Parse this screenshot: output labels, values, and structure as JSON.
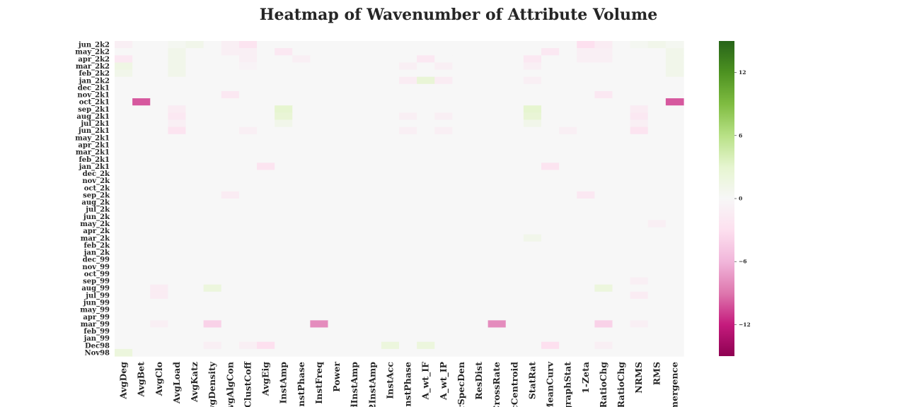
{
  "chart_data": {
    "type": "heatmap",
    "title": "Heatmap of Wavenumber of Attribute Volume",
    "rows": [
      "jun_2k2",
      "may_2k2",
      "apr_2k2",
      "mar_2k2",
      "feb_2k2",
      "jan_2k2",
      "dec_2k1",
      "nov_2k1",
      "oct_2k1",
      "sep_2k1",
      "aug_2k1",
      "jul_2k1",
      "jun_2k1",
      "may_2k1",
      "apr_2k1",
      "mar_2k1",
      "feb_2k1",
      "jan_2k1",
      "dec_2k",
      "nov_2k",
      "oct_2k",
      "sep_2k",
      "aug_2k",
      "jul_2k",
      "jun_2k",
      "may_2k",
      "apr_2k",
      "mar_2k",
      "feb_2k",
      "jan_2k",
      "dec_99",
      "nov_99",
      "oct_99",
      "sep_99",
      "aug_99",
      "jul_99",
      "jun_99",
      "may_99",
      "apr_99",
      "mar_99",
      "feb_99",
      "jan_99",
      "Dec98",
      "Nov98"
    ],
    "ytick_labels": [
      "jun_2k2",
      "may_2k2",
      "apr_2k2",
      "mar_2k2",
      "feb_2k2",
      "jan_2k2",
      "dec_2k1",
      "nov_2k1",
      "oct_2k1",
      "sep_2k1",
      "aug_2k1",
      "jul_2k1",
      "jun_2k1",
      "may_2k1",
      "apr_2k1",
      "mar_2k1",
      "feb_2k1",
      "jan_2k1",
      "dec_2k",
      "nov_2k",
      "oct_2k",
      "sep_2k",
      "aug_2k",
      "jul_2k",
      "jun_2k",
      "may_2k",
      "apr_2k",
      "mar_2k",
      "feb_2k",
      "jan_2k",
      "dec_99",
      "nov_99",
      "oct_99",
      "sep_99",
      "aug_99",
      "jul_99",
      "jun_99",
      "may_99",
      "apr_99",
      "mar_99",
      "feb_99",
      "jan_99",
      "Dec98",
      "Nov98"
    ],
    "columns": [
      "AvgDeg",
      "AvgBet",
      "AvgClo",
      "AvgLoad",
      "AvgKatz",
      "AvgDensity",
      "AvgAlgCon",
      "AvgClustCoff",
      "AvgEig",
      "InstAmp",
      "InstPhase",
      "InstFreq",
      "Power",
      "dInstAmp",
      "2InstAmp",
      "InstAcc",
      "InstPhase",
      "A_wt_IF",
      "A_wt_IP",
      "rSpecDen",
      "ResDist",
      "CrossRate",
      "cCentroid",
      "StatRat",
      "MeanCurv",
      "graphStat",
      "1-Zeta",
      "RatioChg",
      "RatioChg",
      "NRMS",
      "RMS",
      "mergence"
    ],
    "xtick_labels": [
      "AvgDeg",
      "AvgBet",
      "AvgClo",
      "AvgLoad",
      "AvgKatz",
      "AvgDensity",
      "AvgAlgCon",
      "AvgClustCoff",
      "AvgEig",
      "InstAmp",
      "InstPhase",
      "InstFreq",
      "Power",
      "dInstAmp",
      "2InstAmp",
      "InstAcc",
      "InstPhase",
      "A_wt_IF",
      "A_wt_IP",
      "rSpecDen",
      "ResDist",
      "CrossRate",
      "cCentroid",
      "StatRat",
      "MeanCurv",
      "graphStat",
      "1-Zeta",
      "RatioChg",
      "RatioChg",
      "NRMS",
      "RMS",
      "mergence"
    ],
    "values": [
      [
        -1,
        0,
        0,
        0.5,
        1,
        0,
        -1,
        -2.5,
        0,
        0,
        0,
        0,
        0,
        0,
        0,
        0,
        0,
        0,
        0,
        0,
        0,
        0,
        0,
        0,
        0,
        0,
        -3,
        -1.5,
        0,
        0.5,
        1,
        0.5
      ],
      [
        0,
        0,
        0,
        1,
        0,
        0,
        -1,
        -1,
        0,
        -2,
        0,
        0,
        0,
        0,
        0,
        0,
        0,
        0,
        0,
        0,
        0,
        0,
        0,
        0,
        -2,
        0,
        -1,
        -1,
        0,
        0,
        0,
        1
      ],
      [
        -2,
        0,
        0,
        1,
        0,
        0,
        0,
        -1,
        0,
        0,
        -1,
        0,
        0,
        0,
        0,
        0,
        0,
        -2,
        0,
        0,
        0,
        0,
        0,
        -2,
        0,
        0,
        -1,
        -1,
        0,
        0,
        0,
        1
      ],
      [
        1.5,
        0,
        0,
        1,
        0,
        0,
        0,
        -0.5,
        0,
        0,
        0,
        0,
        0,
        0,
        0,
        0,
        -1,
        0,
        -1,
        0,
        0,
        0,
        0,
        -1,
        0,
        0,
        0,
        0,
        0,
        0,
        0,
        1
      ],
      [
        1,
        0,
        0,
        1,
        0,
        0,
        0,
        0,
        0,
        0,
        0,
        0,
        0,
        0,
        0,
        0,
        0,
        0,
        0,
        0,
        0,
        0,
        0,
        0,
        0,
        0,
        0,
        0,
        0,
        0,
        0,
        1
      ],
      [
        0,
        0,
        0,
        0,
        0,
        0,
        0,
        0,
        0,
        0,
        0,
        0,
        0,
        0,
        0,
        0,
        -1.5,
        2.5,
        -1.5,
        0,
        0,
        0,
        0,
        -1,
        0,
        0,
        0,
        0,
        0,
        0,
        0,
        0
      ],
      [
        0,
        0,
        0,
        0,
        0,
        0,
        0,
        0,
        0,
        0,
        0,
        0,
        0,
        0,
        0,
        0,
        0,
        0,
        0,
        0,
        0,
        0,
        0,
        0,
        0,
        0,
        0,
        0,
        0,
        0,
        0,
        0
      ],
      [
        0,
        0,
        0,
        0,
        0,
        0,
        -2,
        0,
        0,
        0,
        0,
        0,
        0,
        0,
        0,
        0,
        0,
        0,
        0,
        0,
        0,
        0,
        0,
        0,
        0,
        0,
        0,
        -2,
        0,
        0,
        0,
        0
      ],
      [
        0,
        -10,
        0,
        0,
        0,
        0,
        0,
        0,
        0,
        0,
        0,
        0,
        0,
        0,
        0,
        0,
        0,
        0,
        0,
        0,
        0,
        0,
        0,
        0,
        0,
        0,
        0,
        0,
        0,
        0,
        0,
        -10
      ],
      [
        0,
        0,
        0,
        -1.5,
        0,
        0,
        0,
        0,
        0,
        3,
        0,
        0,
        0,
        0,
        0,
        0,
        0,
        0,
        0,
        0,
        0,
        0,
        0,
        3,
        0,
        0,
        0,
        0,
        0,
        -1.5,
        0,
        0
      ],
      [
        0,
        0,
        0,
        -2,
        0,
        0,
        0,
        0,
        0,
        2.5,
        0,
        0,
        0,
        0,
        0,
        0,
        -1,
        0,
        -1,
        0,
        0,
        0,
        0,
        2.5,
        0,
        0,
        0,
        0,
        0,
        -2,
        0,
        0
      ],
      [
        0,
        0,
        0,
        -1,
        0,
        0,
        0,
        0,
        0,
        1,
        0,
        0,
        0,
        0,
        0,
        0,
        0,
        0,
        0,
        0,
        0,
        0,
        0,
        1,
        0,
        0,
        0,
        0,
        0,
        -1,
        0,
        0
      ],
      [
        0,
        0,
        0,
        -2.5,
        0,
        0,
        0,
        -1,
        0,
        0,
        0,
        0,
        0,
        0,
        0,
        0,
        -1,
        0,
        -1,
        0,
        0,
        0,
        0,
        0,
        0,
        -1,
        0,
        0,
        0,
        -2.5,
        0,
        0
      ],
      [
        0,
        0,
        0,
        0,
        0,
        0,
        0,
        0,
        0,
        0,
        0,
        0,
        0,
        0,
        0,
        0,
        0,
        0,
        0,
        0,
        0,
        0,
        0,
        0,
        0,
        0,
        0,
        0,
        0,
        0,
        0,
        0
      ],
      [
        0,
        0,
        0,
        0,
        0,
        0,
        0,
        0,
        0,
        0,
        0,
        0,
        0,
        0,
        0,
        0,
        0,
        0,
        0,
        0,
        0,
        0,
        0,
        0,
        0,
        0,
        0,
        0,
        0,
        0,
        0,
        0
      ],
      [
        0,
        0,
        0,
        0,
        0,
        0,
        0,
        0,
        0,
        0,
        0,
        0,
        0,
        0,
        0,
        0,
        0,
        0,
        0,
        0,
        0,
        0,
        0,
        0,
        0,
        0,
        0,
        0,
        0,
        0,
        0,
        0
      ],
      [
        0,
        0,
        0,
        0,
        0,
        0,
        0,
        0,
        0,
        0,
        0,
        0,
        0,
        0,
        0,
        0,
        0,
        0,
        0,
        0,
        0,
        0,
        0,
        0,
        0,
        0,
        0,
        0,
        0,
        0,
        0,
        0
      ],
      [
        0,
        0,
        0,
        0,
        0,
        0,
        0,
        0,
        -2.5,
        0,
        0,
        0,
        0,
        0,
        0,
        0,
        0,
        0,
        0,
        0,
        0,
        0,
        0,
        0,
        -2.5,
        0,
        0,
        0,
        0,
        0,
        0,
        0
      ],
      [
        0,
        0,
        0,
        0,
        0,
        0,
        0,
        0,
        0,
        0,
        0,
        0,
        0,
        0,
        0,
        0,
        0,
        0,
        0,
        0,
        0,
        0,
        0,
        0,
        0,
        0,
        0,
        0,
        0,
        0,
        0,
        0
      ],
      [
        0,
        0,
        0,
        0,
        0,
        0,
        0,
        0,
        0,
        0,
        0,
        0,
        0,
        0,
        0,
        0,
        0,
        0,
        0,
        0,
        0,
        0,
        0,
        0,
        0,
        0,
        0,
        0,
        0,
        0,
        0,
        0
      ],
      [
        0,
        0,
        0,
        0,
        0,
        0,
        0,
        0,
        0,
        0,
        0,
        0,
        0,
        0,
        0,
        0,
        0,
        0,
        0,
        0,
        0,
        0,
        0,
        0,
        0,
        0,
        0,
        0,
        0,
        0,
        0,
        0
      ],
      [
        0,
        0,
        0,
        0,
        0,
        0,
        -1.5,
        0,
        0,
        0,
        0,
        0,
        0,
        0,
        0,
        0,
        0,
        0,
        0,
        0,
        0,
        0,
        0,
        0,
        0,
        0,
        -2,
        0,
        0,
        0,
        0,
        0
      ],
      [
        0,
        0,
        0,
        0,
        0,
        0,
        0,
        0,
        0,
        0,
        0,
        0,
        0,
        0,
        0,
        0,
        0,
        0,
        0,
        0,
        0,
        0,
        0,
        0,
        0,
        0,
        0,
        0,
        0,
        0,
        0,
        0
      ],
      [
        0,
        0,
        0,
        0,
        0,
        0,
        0,
        0,
        0,
        0,
        0,
        0,
        0,
        0,
        0,
        0,
        0,
        0,
        0,
        0,
        0,
        0,
        0,
        0,
        0,
        0,
        0,
        0,
        0,
        0,
        0,
        0
      ],
      [
        0,
        0,
        0,
        0,
        0,
        0,
        0,
        0,
        0,
        0,
        0,
        0,
        0,
        0,
        0,
        0,
        0,
        0,
        0,
        0,
        0,
        0,
        0,
        0,
        0,
        0,
        0,
        0,
        0,
        0,
        0,
        0
      ],
      [
        0,
        0,
        0,
        0,
        0,
        0,
        0,
        0,
        0,
        0,
        0,
        0,
        0,
        0,
        0,
        0,
        0,
        0,
        0,
        0,
        0,
        0,
        0,
        0,
        0,
        0,
        0,
        0,
        0,
        0,
        -1,
        0
      ],
      [
        0,
        0,
        0,
        0,
        0,
        0,
        0,
        0,
        0,
        0,
        0,
        0,
        0,
        0,
        0,
        0,
        0,
        0,
        0,
        0,
        0,
        0,
        0,
        0,
        0,
        0,
        0,
        0,
        0,
        0,
        0,
        0
      ],
      [
        0,
        0,
        0,
        0,
        0,
        0,
        0,
        0,
        0,
        0,
        0,
        0,
        0,
        0,
        0,
        0,
        0,
        0,
        0,
        0,
        0,
        0,
        0,
        1,
        0,
        0,
        0,
        0,
        0,
        0,
        0,
        0
      ],
      [
        0,
        0,
        0,
        0,
        0,
        0,
        0,
        0,
        0,
        0,
        0,
        0,
        0,
        0,
        0,
        0,
        0,
        0,
        0,
        0,
        0,
        0,
        0,
        0,
        0,
        0,
        0,
        0,
        0,
        0,
        0,
        0
      ],
      [
        0,
        0,
        0,
        0,
        0,
        0,
        0,
        0,
        0,
        0,
        0,
        0,
        0,
        0,
        0,
        0,
        0,
        0,
        0,
        0,
        0,
        0,
        0,
        0,
        0,
        0,
        0,
        0,
        0,
        0,
        0,
        0
      ],
      [
        0,
        0,
        0,
        0,
        0,
        0,
        0,
        0,
        0,
        0,
        0,
        0,
        0,
        0,
        0,
        0,
        0,
        0,
        0,
        0,
        0,
        0,
        0,
        0,
        0,
        0,
        0,
        0,
        0,
        0,
        0,
        0
      ],
      [
        0,
        0,
        0,
        0,
        0,
        0,
        0,
        0,
        0,
        0,
        0,
        0,
        0,
        0,
        0,
        0,
        0,
        0,
        0,
        0,
        0,
        0,
        0,
        0,
        0,
        0,
        0,
        0,
        0,
        0,
        0,
        0
      ],
      [
        0,
        0,
        0,
        0,
        0,
        0,
        0,
        0,
        0,
        0,
        0,
        0,
        0,
        0,
        0,
        0,
        0,
        0,
        0,
        0,
        0,
        0,
        0,
        0,
        0,
        0,
        0,
        0,
        0,
        0,
        0,
        0
      ],
      [
        0,
        0,
        0,
        0,
        0,
        0,
        0,
        0,
        0,
        0,
        0,
        0,
        0,
        0,
        0,
        0,
        0,
        0,
        0,
        0,
        0,
        0,
        0,
        0,
        0,
        0,
        0,
        0,
        0,
        -1,
        0,
        0
      ],
      [
        0,
        0,
        -1.5,
        0,
        0,
        2,
        0,
        0,
        0,
        0,
        0,
        0,
        0,
        0,
        0,
        0,
        0,
        0,
        0,
        0,
        0,
        0,
        0,
        0,
        0,
        0,
        0,
        2,
        0,
        0,
        0,
        0
      ],
      [
        0,
        0,
        -1.5,
        0,
        0,
        0,
        0,
        0,
        0,
        0,
        0,
        0,
        0,
        0,
        0,
        0,
        0,
        0,
        0,
        0,
        0,
        0,
        0,
        0,
        0,
        0,
        0,
        0,
        0,
        -1.5,
        0,
        0
      ],
      [
        0,
        0,
        0,
        0,
        0,
        0,
        0,
        0,
        0,
        0,
        0,
        0,
        0,
        0,
        0,
        0,
        0,
        0,
        0,
        0,
        0,
        0,
        0,
        0,
        0,
        0,
        0,
        0,
        0,
        0,
        0,
        0
      ],
      [
        0,
        0,
        0,
        0,
        0,
        0,
        0,
        0,
        0,
        0,
        0,
        0,
        0,
        0,
        0,
        0,
        0,
        0,
        0,
        0,
        0,
        0,
        0,
        0,
        0,
        0,
        0,
        0,
        0,
        0,
        0,
        0
      ],
      [
        0,
        0,
        0,
        0,
        0,
        0,
        0,
        0,
        0,
        0,
        0,
        0,
        0,
        0,
        0,
        0,
        0,
        0,
        0,
        0,
        0,
        0,
        0,
        0,
        0,
        0,
        0,
        0,
        0,
        0,
        0,
        0
      ],
      [
        0,
        0,
        -1,
        0,
        0,
        -4,
        0,
        0,
        0,
        0,
        0,
        -8,
        0,
        0,
        0,
        0,
        0,
        0,
        0,
        0,
        0,
        -8,
        0,
        0,
        0,
        0,
        0,
        -4,
        0,
        -1,
        0,
        0
      ],
      [
        0,
        0,
        0,
        0,
        0,
        0,
        0,
        0,
        0,
        0,
        0,
        0,
        0,
        0,
        0,
        0,
        0,
        0,
        0,
        0,
        0,
        0,
        0,
        0,
        0,
        0,
        0,
        0,
        0,
        0,
        0,
        0
      ],
      [
        0,
        0,
        0,
        0,
        0,
        0,
        0,
        0,
        0,
        0,
        0,
        0,
        0,
        0,
        0,
        0,
        0,
        0,
        0,
        0,
        0,
        0,
        0,
        0,
        0,
        0,
        0,
        0,
        0,
        0,
        0,
        0
      ],
      [
        0,
        0,
        0,
        0,
        0,
        -1,
        0,
        -1,
        -3,
        0,
        0,
        0,
        0,
        0,
        0,
        2,
        0,
        2,
        0,
        0,
        0,
        0,
        0,
        0,
        -3,
        0,
        0,
        -1,
        0,
        0,
        0,
        0
      ],
      [
        2,
        0,
        0,
        0,
        0,
        0,
        0,
        0,
        0,
        0,
        0,
        0,
        0,
        0,
        0,
        0,
        0,
        0,
        0,
        0,
        0,
        0,
        0,
        0,
        0,
        0,
        0,
        0,
        0,
        0,
        0,
        0
      ]
    ],
    "colormap": "PiYG",
    "vmin": -15,
    "vmax": 15,
    "colorbar_ticks": [
      12,
      6,
      0,
      -6,
      -12
    ],
    "colorbar_labels": [
      "12",
      "6",
      "0",
      "−6",
      "−12"
    ]
  }
}
